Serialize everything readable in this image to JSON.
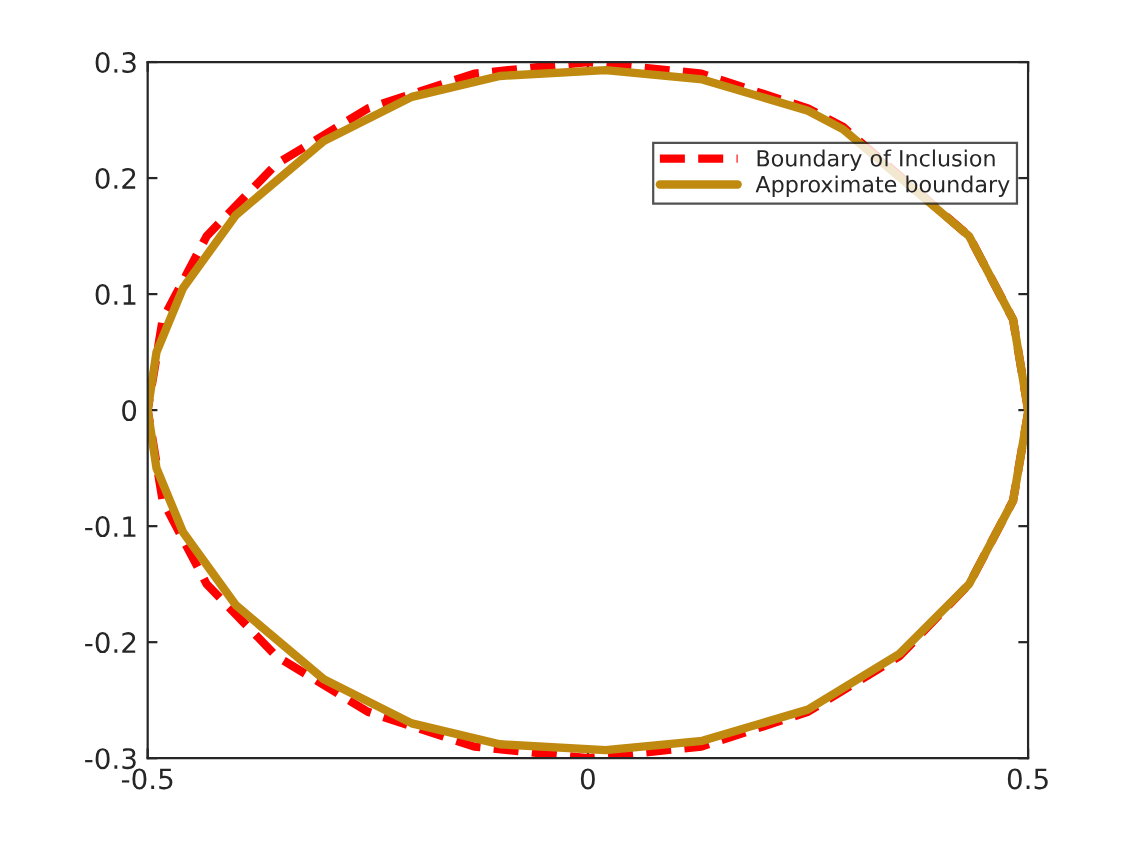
{
  "chart_data": {
    "type": "line",
    "series": [
      {
        "name": "Boundary of Inclusion",
        "color": "#ff0000",
        "line_style": "dashed",
        "x": [
          0.5,
          0.483,
          0.433,
          0.29,
          0.25,
          0.129,
          0,
          -0.129,
          -0.25,
          -0.354,
          -0.433,
          -0.483,
          -0.5,
          -0.483,
          -0.433,
          -0.354,
          -0.25,
          -0.129,
          0,
          0.129,
          0.25,
          0.354,
          0.433,
          0.483,
          0.5
        ],
        "values": [
          0,
          0.078,
          0.15,
          0.244,
          0.26,
          0.29,
          0.3,
          0.29,
          0.26,
          0.212,
          0.15,
          0.078,
          0,
          -0.078,
          -0.15,
          -0.212,
          -0.26,
          -0.29,
          -0.3,
          -0.29,
          -0.26,
          -0.212,
          -0.15,
          -0.078,
          -0.002
        ]
      },
      {
        "name": "Approximate boundary",
        "color": "#bf8a0f",
        "line_style": "solid",
        "x": [
          0.5,
          0.483,
          0.433,
          0.29,
          0.25,
          0.13,
          0.02,
          -0.1,
          -0.2,
          -0.3,
          -0.4,
          -0.46,
          -0.49,
          -0.5,
          -0.49,
          -0.46,
          -0.4,
          -0.3,
          -0.2,
          -0.1,
          0.02,
          0.13,
          0.25,
          0.354,
          0.433,
          0.483,
          0.5
        ],
        "values": [
          0,
          0.078,
          0.15,
          0.242,
          0.258,
          0.285,
          0.293,
          0.288,
          0.27,
          0.232,
          0.168,
          0.105,
          0.05,
          0,
          -0.05,
          -0.105,
          -0.168,
          -0.232,
          -0.27,
          -0.288,
          -0.293,
          -0.285,
          -0.258,
          -0.21,
          -0.15,
          -0.078,
          -0.002
        ]
      }
    ],
    "xlim": [
      -0.5,
      0.5
    ],
    "xticks": [
      -0.5,
      0,
      0.5
    ],
    "ylim": [
      -0.3,
      0.3
    ],
    "yticks": [
      -0.3,
      -0.2,
      -0.1,
      0,
      0.1,
      0.2,
      0.3
    ],
    "grid": false,
    "legend": "top right"
  }
}
